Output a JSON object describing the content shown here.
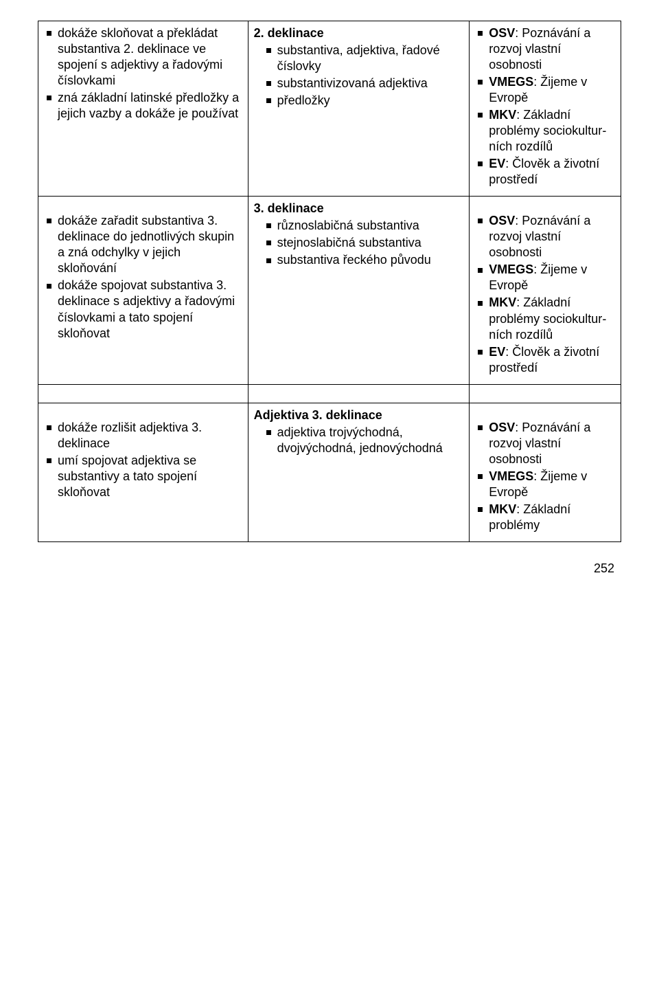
{
  "rows": [
    {
      "col1": [
        "dokáže skloňovat a překládat substantiva 2. deklinace ve spojení s adjektivy a řadovými číslovkami",
        "zná základní latinské předložky a jejich vazby a dokáže je používat"
      ],
      "col2_head": "2. deklinace",
      "col2": [
        "substantiva, adjektiva, řadové číslovky",
        "substantivizovaná adjektiva",
        "předložky"
      ],
      "col3": [
        {
          "bold": "OSV",
          "rest": ": Poznávání a rozvoj vlastní osobnosti"
        },
        {
          "bold": "VMEGS",
          "rest": ": Žijeme v Evropě"
        },
        {
          "bold": "MKV",
          "rest": ": Základní problémy sociokultur­ních rozdílů"
        },
        {
          "bold": "EV",
          "rest": ": Člověk a životní prostředí"
        }
      ]
    },
    {
      "col1": [
        "dokáže zařadit substantiva 3. deklinace do jednotlivých skupin a zná odchylky v jejich skloňování",
        "dokáže spojovat substantiva 3. deklinace s adjektivy a řadovými číslovkami a tato spojení skloňovat"
      ],
      "col2_head": "3. deklinace",
      "col2": [
        "různoslabičná substantiva",
        "stejnoslabičná substantiva",
        "substantiva řeckého původu"
      ],
      "col3": [
        {
          "bold": "OSV",
          "rest": ": Poznávání a rozvoj vlastní osobnosti"
        },
        {
          "bold": "VMEGS",
          "rest": ": Žijeme v Evropě"
        },
        {
          "bold": "MKV",
          "rest": ": Základní problémy sociokultur­ních rozdílů"
        },
        {
          "bold": "EV",
          "rest": ": Člověk a životní prostředí"
        }
      ]
    },
    {
      "col1": [
        "dokáže rozlišit adjektiva 3. deklinace",
        "umí spojovat adjektiva se substantivy a tato spojení skloňovat"
      ],
      "col2_head": "Adjektiva 3. deklinace",
      "col2": [
        "adjektiva trojvýchodná, dvojvýchodná, jednovýchodná"
      ],
      "col3": [
        {
          "bold": "OSV",
          "rest": ": Poznávání a rozvoj vlastní osobnosti"
        },
        {
          "bold": "VMEGS",
          "rest": ": Žijeme v Evropě"
        },
        {
          "bold": "MKV",
          "rest": ": Základní problémy"
        }
      ]
    }
  ],
  "pagenum": "252",
  "spacer_rows": [
    1
  ]
}
